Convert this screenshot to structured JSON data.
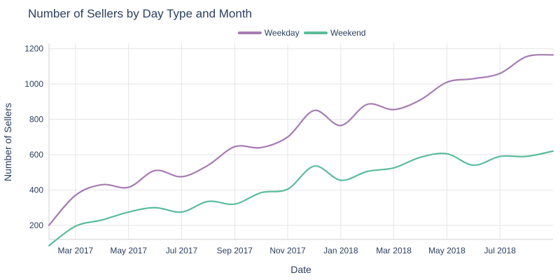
{
  "chart_data": {
    "type": "line",
    "title": "Number of Sellers by Day Type and Month",
    "xlabel": "Date",
    "ylabel": "Number of Sellers",
    "ylim": [
      120,
      1230
    ],
    "yticks": [
      200,
      400,
      600,
      800,
      1000,
      1200
    ],
    "x": [
      "Feb 2017",
      "Mar 2017",
      "Apr 2017",
      "May 2017",
      "Jun 2017",
      "Jul 2017",
      "Aug 2017",
      "Sep 2017",
      "Oct 2017",
      "Nov 2017",
      "Dec 2017",
      "Jan 2018",
      "Feb 2018",
      "Mar 2018",
      "Apr 2018",
      "May 2018",
      "Jun 2018",
      "Jul 2018",
      "Aug 2018",
      "Sep 2018"
    ],
    "xticks": [
      "Mar 2017",
      "May 2017",
      "Jul 2017",
      "Sep 2017",
      "Nov 2017",
      "Jan 2018",
      "Mar 2018",
      "May 2018",
      "Jul 2018"
    ],
    "grid": true,
    "legend_position": "top-center",
    "series": [
      {
        "name": "Weekday",
        "color": "#a77bb4",
        "values": [
          200,
          370,
          430,
          415,
          510,
          475,
          540,
          645,
          640,
          700,
          850,
          765,
          885,
          855,
          910,
          1010,
          1030,
          1060,
          1155,
          1165
        ]
      },
      {
        "name": "Weekend",
        "color": "#5bbd9a",
        "values": [
          85,
          195,
          230,
          275,
          300,
          275,
          335,
          320,
          385,
          405,
          535,
          455,
          505,
          525,
          585,
          605,
          540,
          590,
          590,
          620
        ]
      }
    ]
  }
}
